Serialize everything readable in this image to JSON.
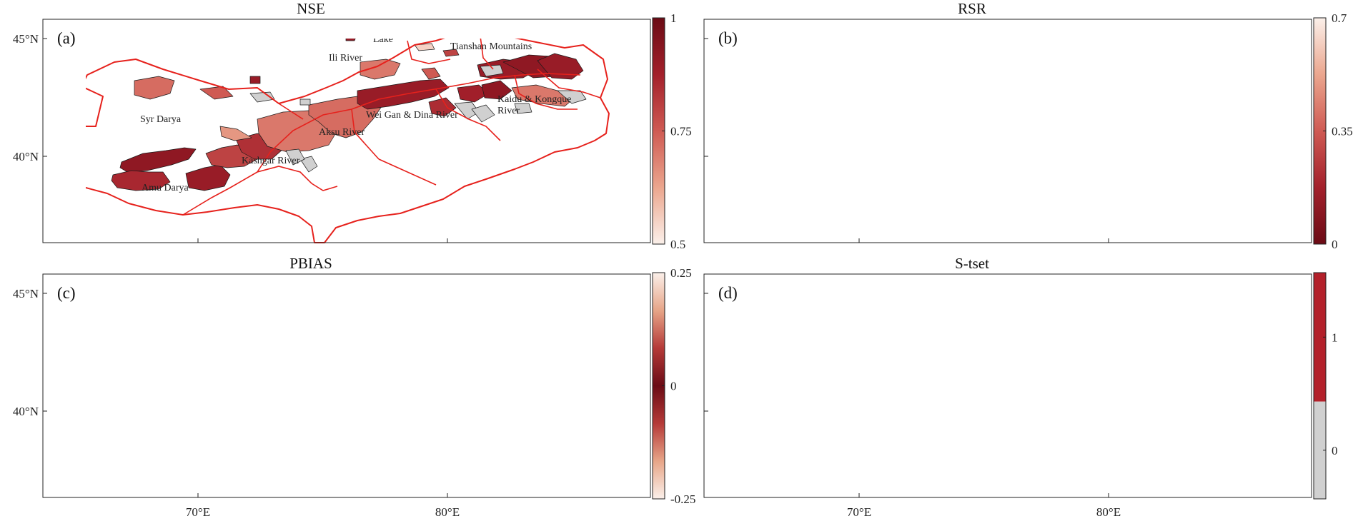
{
  "panels": [
    {
      "id": "a",
      "label": "(a)",
      "title": "NSE",
      "scheme": "nse",
      "colorbar": {
        "ticks": [
          "1",
          "0.75",
          "0.5"
        ],
        "stops": [
          "#6b0b15",
          "#a3202b",
          "#cf5a53",
          "#eba68e",
          "#fbf0ea"
        ]
      }
    },
    {
      "id": "b",
      "label": "(b)",
      "title": "RSR",
      "scheme": "rsr",
      "colorbar": {
        "ticks": [
          "0.7",
          "0.35",
          "0"
        ],
        "stops": [
          "#fbf0ea",
          "#eba68e",
          "#cf5a53",
          "#a3202b",
          "#6b0b15"
        ]
      }
    },
    {
      "id": "c",
      "label": "(c)",
      "title": "PBIAS",
      "scheme": "pbias",
      "colorbar": {
        "ticks": [
          "0.25",
          "0",
          "-0.25"
        ],
        "stops": [
          "#fbf0ea",
          "#e7a588",
          "#b53a38",
          "#6b0b15",
          "#b53a38",
          "#e7a588",
          "#fbf0ea"
        ]
      }
    },
    {
      "id": "d",
      "label": "(d)",
      "title": "S-tset",
      "scheme": "stest",
      "colorbar": {
        "ticks": [
          "1",
          "0"
        ],
        "categorical": [
          "#b3202a",
          "#d0d0d0"
        ]
      }
    }
  ],
  "regions": {
    "ebinur": "Ebinur\nLake",
    "north_tianshan": "Rivers in the northern\nTianshan Mountains",
    "ili": "Ili River",
    "syr": "Syr Darya",
    "wei_gan": "Wei Gan & Dina River",
    "kaidu": "Kaidu & Kongque\nRiver",
    "aksu": "Aksu River",
    "kashgar": "Kashgar River",
    "amu": "Amu Darya"
  },
  "axes": {
    "lat_labels": [
      "45°N",
      "40°N"
    ],
    "lon_labels": [
      "70°E",
      "80°E"
    ]
  },
  "colors": {
    "boundary": "#e6211c",
    "catchment_edge": "#1a1a1a",
    "no_data": "#d0d0d0"
  }
}
